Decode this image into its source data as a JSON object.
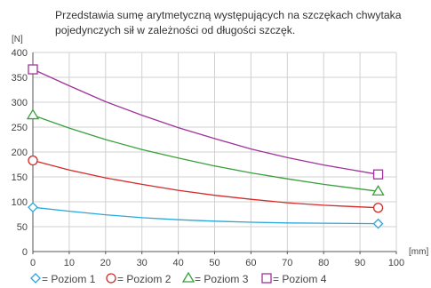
{
  "caption": "Przedstawia sumę arytmetyczną występujących na szczękach chwytaka pojedynczych sił w zależności od długości szczęk.",
  "chart_data": {
    "type": "line",
    "title": "",
    "xlabel": "[mm]",
    "ylabel": "[N]",
    "xlim": [
      0,
      100
    ],
    "ylim": [
      0,
      400
    ],
    "x_ticks": [
      0,
      10,
      20,
      30,
      40,
      50,
      60,
      70,
      80,
      90,
      100
    ],
    "y_ticks": [
      0,
      50,
      100,
      150,
      200,
      250,
      300,
      350,
      400
    ],
    "grid": true,
    "legend_position": "bottom",
    "series": [
      {
        "name": "Poziom 1",
        "marker": "diamond",
        "color": "#2aa7dd",
        "points": [
          [
            0,
            89
          ],
          [
            10,
            81
          ],
          [
            20,
            74
          ],
          [
            30,
            68
          ],
          [
            40,
            64
          ],
          [
            50,
            61
          ],
          [
            60,
            59
          ],
          [
            70,
            57.5
          ],
          [
            80,
            57
          ],
          [
            95,
            56
          ]
        ]
      },
      {
        "name": "Poziom 2",
        "marker": "circle",
        "color": "#d42a2a",
        "points": [
          [
            0,
            183
          ],
          [
            10,
            164
          ],
          [
            20,
            148
          ],
          [
            30,
            135
          ],
          [
            40,
            123
          ],
          [
            50,
            113
          ],
          [
            60,
            105
          ],
          [
            70,
            98
          ],
          [
            80,
            93
          ],
          [
            95,
            88
          ]
        ]
      },
      {
        "name": "Poziom 3",
        "marker": "triangle",
        "color": "#39a03c",
        "points": [
          [
            0,
            274
          ],
          [
            10,
            248
          ],
          [
            20,
            225
          ],
          [
            30,
            205
          ],
          [
            40,
            188
          ],
          [
            50,
            172
          ],
          [
            60,
            158
          ],
          [
            70,
            146
          ],
          [
            80,
            135
          ],
          [
            95,
            121
          ]
        ]
      },
      {
        "name": "Poziom 4",
        "marker": "square",
        "color": "#a0329b",
        "points": [
          [
            0,
            366
          ],
          [
            10,
            333
          ],
          [
            20,
            301
          ],
          [
            30,
            274
          ],
          [
            40,
            249
          ],
          [
            50,
            227
          ],
          [
            60,
            206
          ],
          [
            70,
            189
          ],
          [
            80,
            174
          ],
          [
            95,
            155
          ]
        ]
      }
    ]
  }
}
